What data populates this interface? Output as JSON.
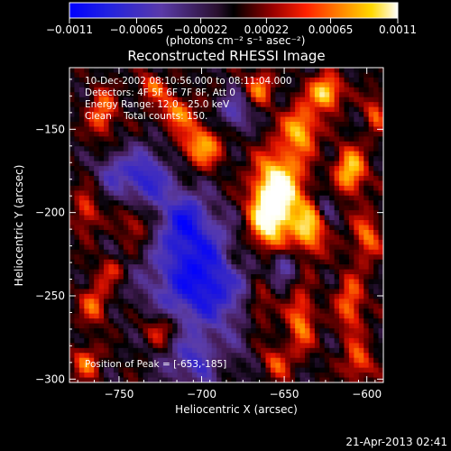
{
  "colorbar": {
    "ticks": [
      "-0.0011",
      "-0.00065",
      "-0.00022",
      "0.00022",
      "0.00065",
      "0.0011"
    ],
    "unit_label": "(photons cm⁻² s⁻¹ asec⁻²)",
    "range": [
      -0.0011,
      0.0011
    ]
  },
  "chart_data": {
    "type": "heatmap",
    "title": "Reconstructed RHESSI Image",
    "xlabel": "Heliocentric X (arcsec)",
    "ylabel": "Heliocentric Y (arcsec)",
    "xlim": [
      -780,
      -590
    ],
    "ylim": [
      -302,
      -113
    ],
    "xticks": [
      -750,
      -700,
      -650,
      -600
    ],
    "yticks": [
      -150,
      -200,
      -250,
      -300
    ],
    "xtick_labels": [
      "−750",
      "−700",
      "−650",
      "−600"
    ],
    "ytick_labels": [
      "−150",
      "−200",
      "−250",
      "−300"
    ],
    "colormap": "blue-purple-black-red-orange-yellow-white",
    "annotations": [
      "10-Dec-2002 08:10:56.000 to 08:11:04.000",
      "Detectors: 4F 5F 6F 7F 8F, Att 0",
      "Energy Range: 12.0 - 25.0 keV",
      "Clean    Total counts: 150."
    ],
    "peak_label": "Position of Peak = [-653,-185]",
    "peak": [
      -653,
      -185
    ]
  },
  "footer": {
    "timestamp": "21-Apr-2013 02:41"
  }
}
